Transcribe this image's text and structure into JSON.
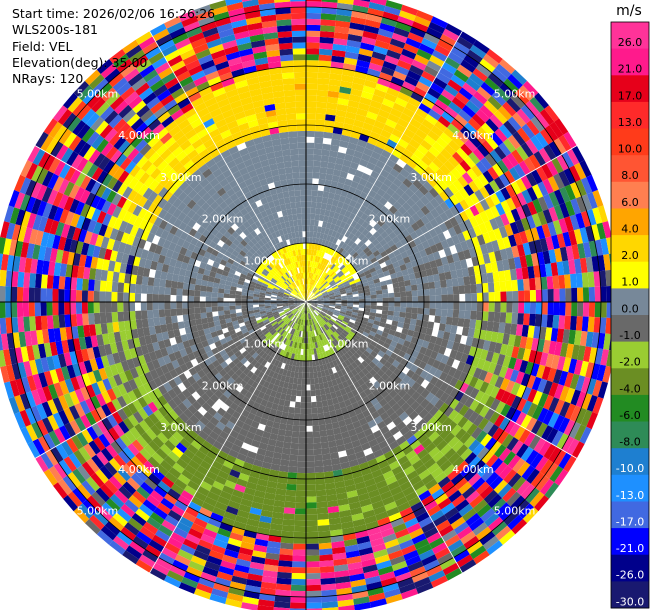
{
  "header": {
    "start_time": "Start time: 2026/02/06 16:26:26",
    "site": "WLS200s-181",
    "field": "Field: VEL",
    "elevation": "Elevation(deg): 35.00",
    "nrays": "NRays: 120"
  },
  "chart_data": {
    "type": "heatmap",
    "projection": "polar-ppi",
    "field": "VEL",
    "elevation_deg": 35.0,
    "n_rays": 120,
    "range_rings_km": [
      1,
      2,
      3,
      4,
      5
    ],
    "ring_labels": [
      {
        "ring": 1,
        "label": "1.00km"
      },
      {
        "ring": 2,
        "label": "2.00km"
      },
      {
        "ring": 3,
        "label": "3.00km"
      },
      {
        "ring": 4,
        "label": "4.00km"
      },
      {
        "ring": 5,
        "label": "5.00km"
      }
    ],
    "colorbar": {
      "unit": "m/s",
      "tick_labels": [
        "26.0",
        "21.0",
        "17.0",
        "13.0",
        "10.0",
        "8.0",
        "6.0",
        "4.0",
        "2.0",
        "1.0",
        "0.0",
        "-1.0",
        "-2.0",
        "-4.0",
        "-6.0",
        "-8.0",
        "-10.0",
        "-13.0",
        "-17.0",
        "-21.0",
        "-26.0",
        "-30.0"
      ],
      "bins": [
        {
          "range": [
            26,
            30
          ],
          "color": "#ff3399"
        },
        {
          "range": [
            21,
            26
          ],
          "color": "#ff1a8c"
        },
        {
          "range": [
            17,
            21
          ],
          "color": "#e6001a"
        },
        {
          "range": [
            13,
            17
          ],
          "color": "#ff2a2a"
        },
        {
          "range": [
            10,
            13
          ],
          "color": "#ff3b1a"
        },
        {
          "range": [
            8,
            10
          ],
          "color": "#ff5533"
        },
        {
          "range": [
            6,
            8
          ],
          "color": "#ff7f50"
        },
        {
          "range": [
            4,
            6
          ],
          "color": "#ffa500"
        },
        {
          "range": [
            2,
            4
          ],
          "color": "#ffd700"
        },
        {
          "range": [
            1,
            2
          ],
          "color": "#ffff00"
        },
        {
          "range": [
            0,
            1
          ],
          "color": "#778899"
        },
        {
          "range": [
            -1,
            0
          ],
          "color": "#696969"
        },
        {
          "range": [
            -2,
            -1
          ],
          "color": "#9acd32"
        },
        {
          "range": [
            -4,
            -2
          ],
          "color": "#6b8e23"
        },
        {
          "range": [
            -6,
            -4
          ],
          "color": "#228b22"
        },
        {
          "range": [
            -8,
            -6
          ],
          "color": "#2e8b57"
        },
        {
          "range": [
            -10,
            -8
          ],
          "color": "#1e7fd0"
        },
        {
          "range": [
            -13,
            -10
          ],
          "color": "#1e90ff"
        },
        {
          "range": [
            -17,
            -13
          ],
          "color": "#4169e1"
        },
        {
          "range": [
            -21,
            -17
          ],
          "color": "#0000ff"
        },
        {
          "range": [
            -26,
            -21
          ],
          "color": "#00008b"
        },
        {
          "range": [
            -30,
            -26
          ],
          "color": "#191970"
        }
      ]
    },
    "field_description": {
      "near_range_km": [
        0,
        1.0
      ],
      "near_north_value_ms": 2.0,
      "near_south_value_ms": -1.5,
      "mid_range_km": [
        1.0,
        2.9
      ],
      "mid_north_value_ms": 0.5,
      "mid_south_value_ms": -0.5,
      "outer_signal_range_km": [
        2.6,
        4.1
      ],
      "outer_north_value_ms": 3.0,
      "outer_south_value_ms": -3.0,
      "noise_range_km": [
        3.5,
        5.3
      ],
      "noise_values_ms": [
        -30,
        30
      ]
    }
  }
}
